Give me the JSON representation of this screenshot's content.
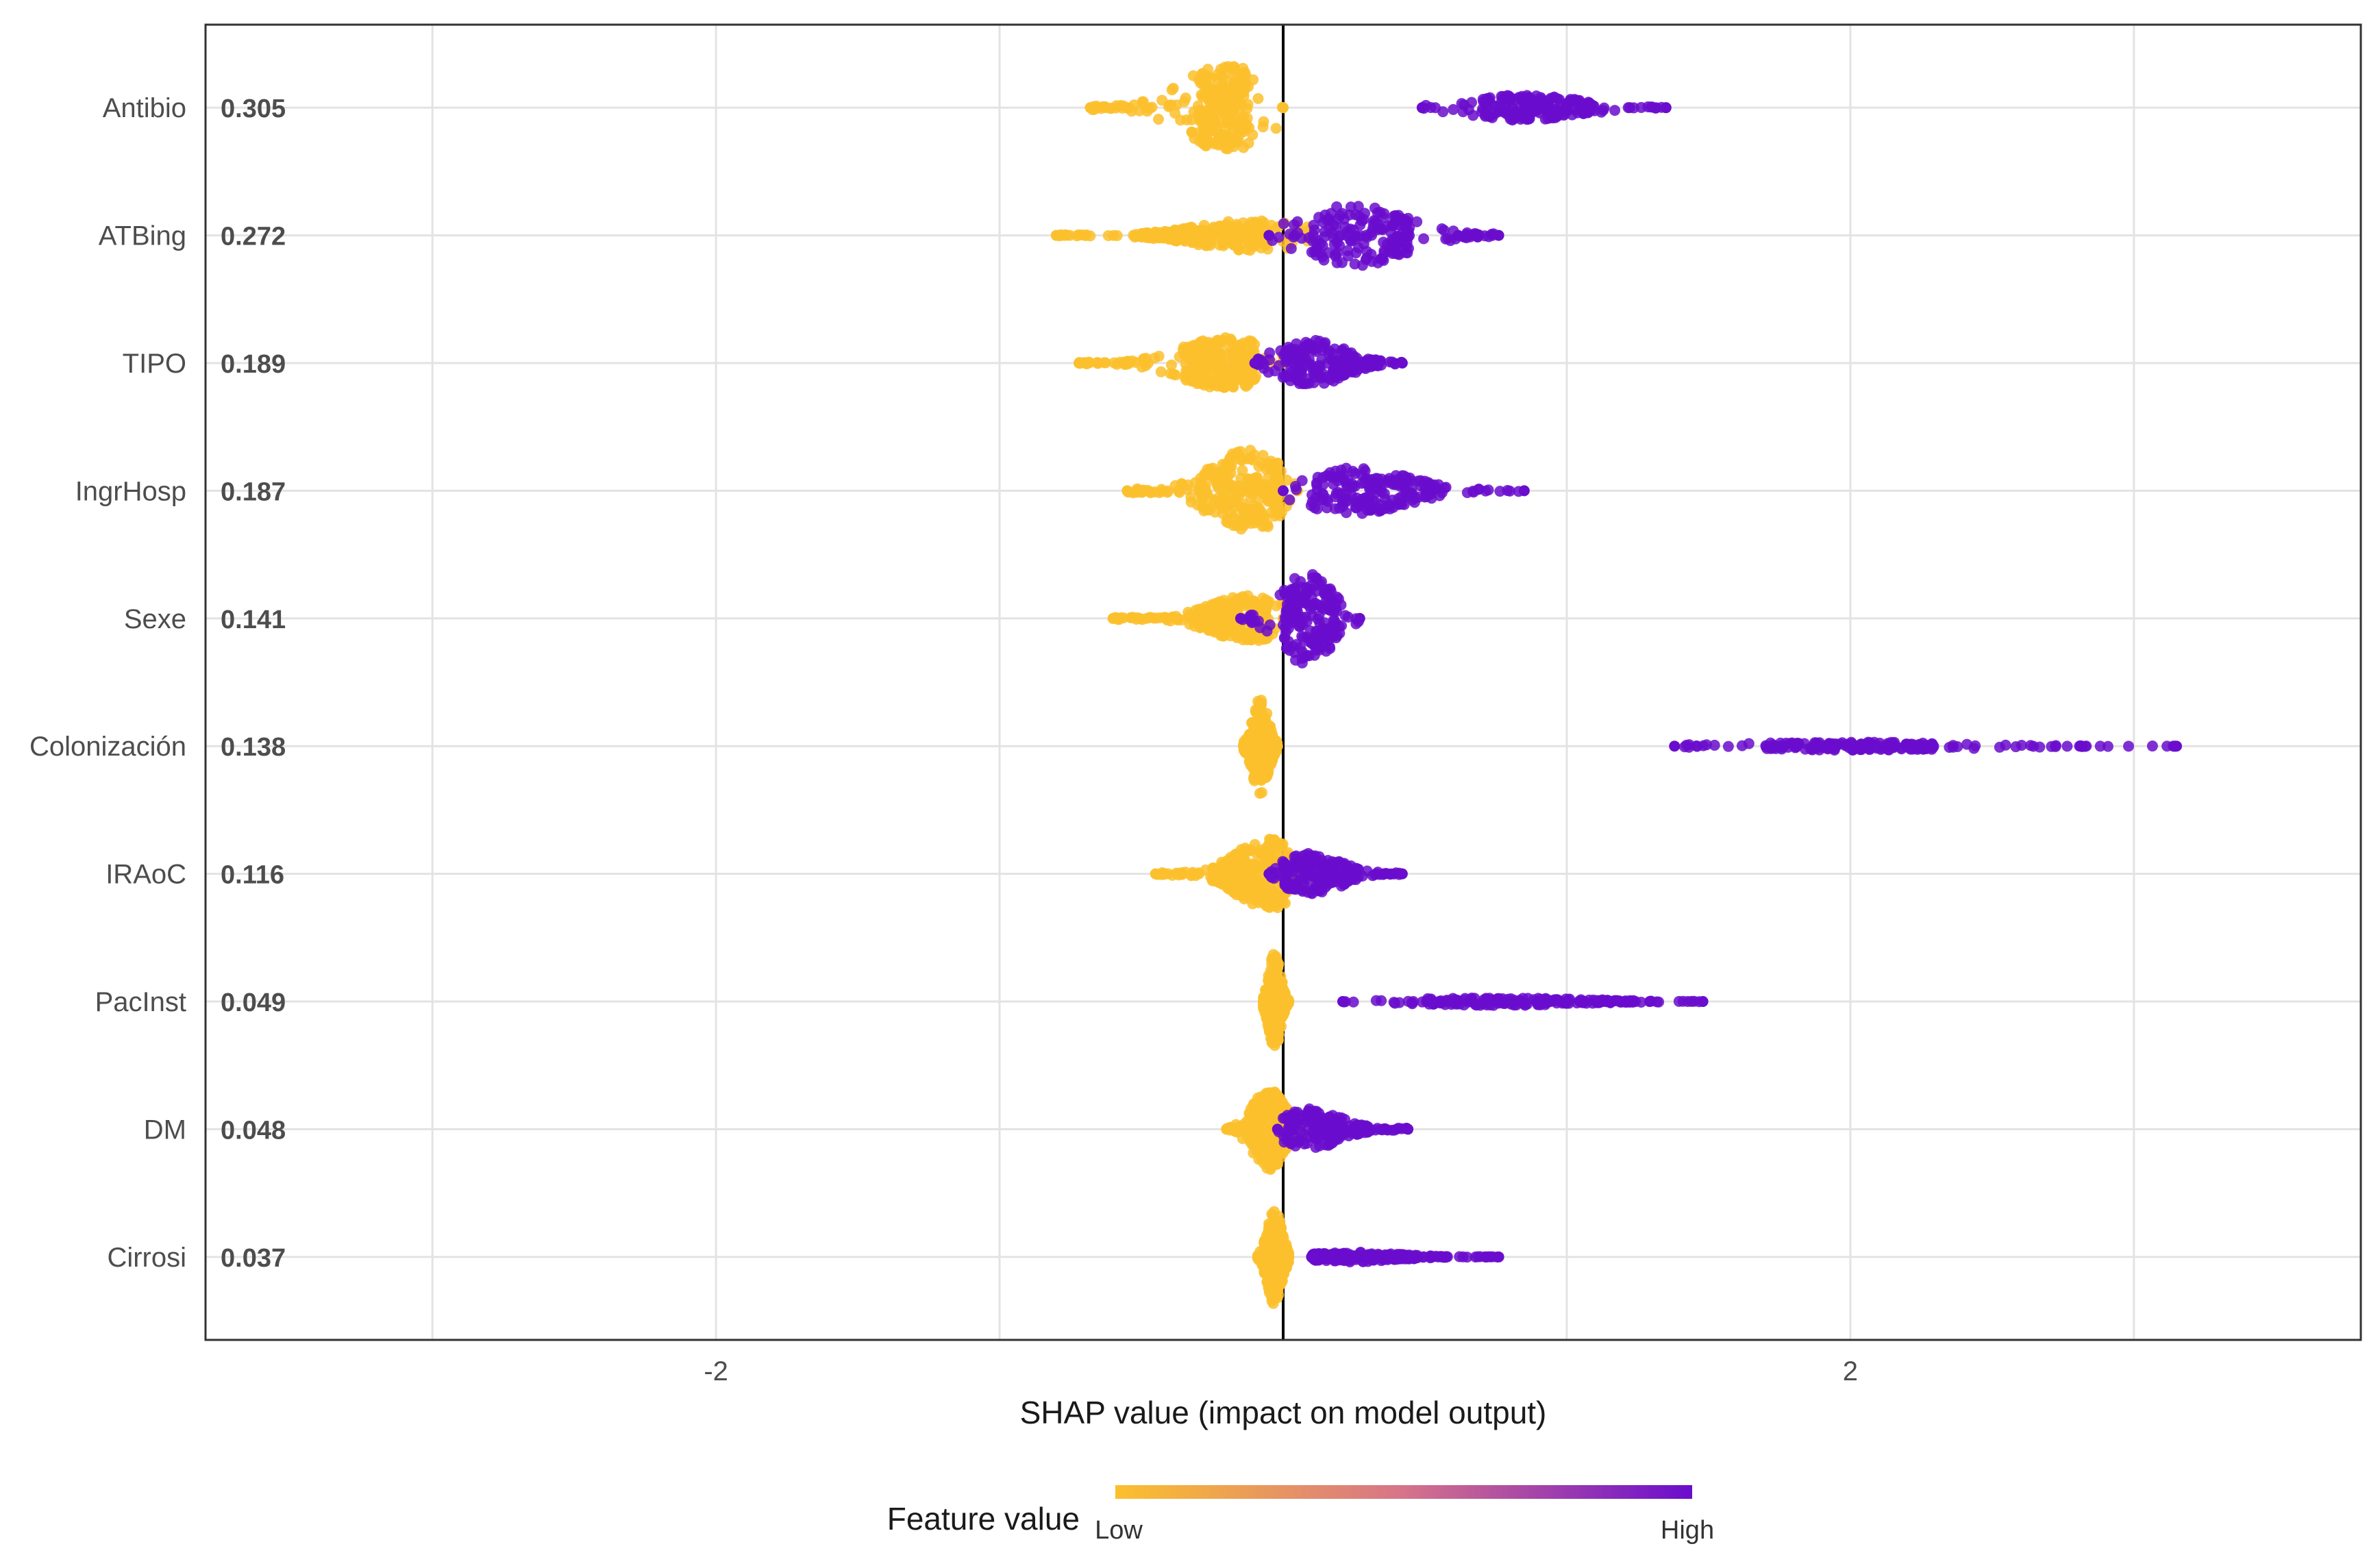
{
  "chart_data": {
    "type": "scatter",
    "subtype": "shap-summary-beeswarm",
    "xlabel": "SHAP value (impact on model output)",
    "xlim": [
      -3.8,
      3.8
    ],
    "x_ticks": [
      -2,
      2
    ],
    "x_tick_labels": [
      "-2",
      "2"
    ],
    "grid": true,
    "legend": {
      "title": "Feature value",
      "low_label": "Low",
      "high_label": "High",
      "position": "bottom"
    },
    "colors": {
      "low": "#FBC02D",
      "mid": "#D6748A",
      "high": "#6A0DCD",
      "grid": "#e3e3e3",
      "axis": "#000000"
    },
    "features": [
      {
        "name": "Antibio",
        "mean_abs_shap": "0.305",
        "low_range": [
          -0.68,
          0.0
        ],
        "low_core": [
          -0.3,
          -0.12
        ],
        "low_max_halfwidth": 0.85,
        "low_mode": -0.2,
        "high_range": [
          0.49,
          1.35
        ],
        "high_core": [
          0.7,
          1.1
        ],
        "high_max_halfwidth": 0.25,
        "high_mode": 0.85
      },
      {
        "name": "ATBing",
        "mean_abs_shap": "0.272",
        "low_range": [
          -0.8,
          0.1
        ],
        "low_core": [
          -0.5,
          -0.05
        ],
        "low_max_halfwidth": 0.3,
        "low_mode": -0.1,
        "high_range": [
          -0.05,
          0.76
        ],
        "high_core": [
          0.1,
          0.45
        ],
        "high_max_halfwidth": 0.6,
        "high_mode": 0.25
      },
      {
        "name": "TIPO",
        "mean_abs_shap": "0.189",
        "low_range": [
          -0.72,
          0.0
        ],
        "low_core": [
          -0.35,
          -0.1
        ],
        "low_max_halfwidth": 0.5,
        "low_mode": -0.2,
        "high_range": [
          -0.1,
          0.42
        ],
        "high_core": [
          0.0,
          0.35
        ],
        "high_max_halfwidth": 0.45,
        "high_mode": 0.1
      },
      {
        "name": "IngrHosp",
        "mean_abs_shap": "0.187",
        "low_range": [
          -0.55,
          0.05
        ],
        "low_core": [
          -0.3,
          0.0
        ],
        "low_max_halfwidth": 0.8,
        "low_mode": -0.12,
        "high_range": [
          0.0,
          0.85
        ],
        "high_core": [
          0.1,
          0.55
        ],
        "high_max_halfwidth": 0.45,
        "high_mode": 0.25
      },
      {
        "name": "Sexe",
        "mean_abs_shap": "0.141",
        "low_range": [
          -0.6,
          0.0
        ],
        "low_core": [
          -0.3,
          -0.05
        ],
        "low_max_halfwidth": 0.45,
        "low_mode": -0.12,
        "high_range": [
          -0.15,
          0.27
        ],
        "high_core": [
          0.0,
          0.2
        ],
        "high_max_halfwidth": 0.9,
        "high_mode": 0.08
      },
      {
        "name": "Colonización",
        "mean_abs_shap": "0.138",
        "low_range": [
          -0.14,
          -0.02
        ],
        "low_core": [
          -0.14,
          -0.02
        ],
        "low_max_halfwidth": 0.95,
        "low_mode": -0.08,
        "high_range": [
          1.38,
          3.15
        ],
        "high_core": [
          1.7,
          2.3
        ],
        "high_max_halfwidth": 0.08,
        "high_mode": 2.0
      },
      {
        "name": "IRAoC",
        "mean_abs_shap": "0.116",
        "low_range": [
          -0.45,
          0.05
        ],
        "low_core": [
          -0.25,
          0.02
        ],
        "low_max_halfwidth": 0.7,
        "low_mode": -0.05,
        "high_range": [
          -0.05,
          0.42
        ],
        "high_core": [
          0.0,
          0.25
        ],
        "high_max_halfwidth": 0.4,
        "high_mode": 0.1
      },
      {
        "name": "PacInst",
        "mean_abs_shap": "0.049",
        "low_range": [
          -0.07,
          0.02
        ],
        "low_core": [
          -0.07,
          0.02
        ],
        "low_max_halfwidth": 0.95,
        "low_mode": -0.03,
        "high_range": [
          0.21,
          1.48
        ],
        "high_core": [
          0.5,
          1.25
        ],
        "high_max_halfwidth": 0.08,
        "high_mode": 0.75
      },
      {
        "name": "DM",
        "mean_abs_shap": "0.048",
        "low_range": [
          -0.2,
          0.05
        ],
        "low_core": [
          -0.12,
          0.02
        ],
        "low_max_halfwidth": 0.8,
        "low_mode": -0.05,
        "high_range": [
          -0.02,
          0.44
        ],
        "high_core": [
          0.0,
          0.3
        ],
        "high_max_halfwidth": 0.4,
        "high_mode": 0.1
      },
      {
        "name": "Cirrosi",
        "mean_abs_shap": "0.037",
        "low_range": [
          -0.09,
          0.02
        ],
        "low_core": [
          -0.07,
          0.02
        ],
        "low_max_halfwidth": 0.95,
        "low_mode": -0.03,
        "high_range": [
          0.1,
          0.76
        ],
        "high_core": [
          0.1,
          0.5
        ],
        "high_max_halfwidth": 0.1,
        "high_mode": 0.25
      }
    ]
  }
}
